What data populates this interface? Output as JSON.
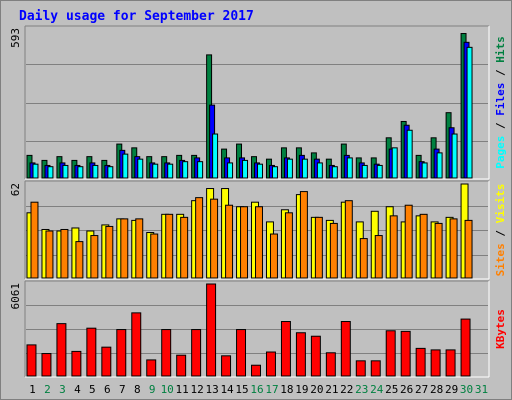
{
  "chart_data": [
    {
      "type": "bar",
      "panel": "top",
      "title": "Daily usage for September 2017",
      "ymax_label": "593",
      "ylim": [
        0,
        593
      ],
      "grid": true,
      "legend_labels": [
        "Pages",
        "Files",
        "Hits"
      ],
      "legend_separator": " / ",
      "categories": [
        "1",
        "2",
        "3",
        "4",
        "5",
        "6",
        "7",
        "8",
        "9",
        "10",
        "11",
        "12",
        "13",
        "14",
        "15",
        "16",
        "17",
        "18",
        "19",
        "20",
        "21",
        "22",
        "23",
        "24",
        "25",
        "26",
        "27",
        "28",
        "29",
        "30",
        "31"
      ],
      "weekend_days": [
        2,
        3,
        9,
        10,
        16,
        17,
        23,
        24,
        30,
        31
      ],
      "series": [
        {
          "name": "Hits",
          "color": "#008040",
          "values": [
            90,
            70,
            85,
            70,
            85,
            70,
            135,
            120,
            85,
            85,
            90,
            90,
            490,
            115,
            135,
            85,
            75,
            120,
            120,
            100,
            75,
            135,
            80,
            80,
            160,
            225,
            90,
            160,
            260,
            575,
            null
          ]
        },
        {
          "name": "Files",
          "color": "#0000ff",
          "values": [
            60,
            50,
            60,
            50,
            60,
            50,
            110,
            85,
            60,
            60,
            70,
            80,
            290,
            80,
            80,
            60,
            50,
            80,
            90,
            75,
            50,
            90,
            60,
            55,
            115,
            210,
            65,
            115,
            200,
            540,
            null
          ]
        },
        {
          "name": "Pages",
          "color": "#00ffff",
          "values": [
            55,
            45,
            50,
            45,
            50,
            45,
            95,
            75,
            55,
            55,
            65,
            65,
            175,
            60,
            70,
            55,
            45,
            75,
            75,
            60,
            45,
            80,
            50,
            50,
            120,
            190,
            60,
            100,
            175,
            520,
            null
          ]
        }
      ]
    },
    {
      "type": "bar",
      "panel": "middle",
      "ymax_label": "62",
      "ylim": [
        0,
        62
      ],
      "grid": true,
      "legend_labels": [
        "Sites",
        "Visits"
      ],
      "legend_separator": " / ",
      "categories": [
        "1",
        "2",
        "3",
        "4",
        "5",
        "6",
        "7",
        "8",
        "9",
        "10",
        "11",
        "12",
        "13",
        "14",
        "15",
        "16",
        "17",
        "18",
        "19",
        "20",
        "21",
        "22",
        "23",
        "24",
        "25",
        "26",
        "27",
        "28",
        "29",
        "30",
        "31"
      ],
      "series": [
        {
          "name": "Visits",
          "color": "#ffff00",
          "values": [
            43,
            32,
            31,
            33,
            31,
            35,
            39,
            38,
            30,
            42,
            42,
            51,
            59,
            59,
            47,
            50,
            37,
            45,
            55,
            40,
            38,
            50,
            37,
            44,
            47,
            37,
            41,
            37,
            40,
            62,
            null
          ]
        },
        {
          "name": "Sites",
          "color": "#ff8000",
          "values": [
            50,
            31,
            32,
            24,
            28,
            34,
            39,
            39,
            29,
            42,
            40,
            53,
            52,
            48,
            47,
            47,
            29,
            43,
            57,
            40,
            36,
            51,
            26,
            28,
            41,
            48,
            42,
            36,
            39,
            38,
            null
          ]
        }
      ]
    },
    {
      "type": "bar",
      "panel": "bottom",
      "ymax_label": "6061",
      "ylim": [
        0,
        6061
      ],
      "grid": true,
      "legend_labels": [
        "KBytes"
      ],
      "categories": [
        "1",
        "2",
        "3",
        "4",
        "5",
        "6",
        "7",
        "8",
        "9",
        "10",
        "11",
        "12",
        "13",
        "14",
        "15",
        "16",
        "17",
        "18",
        "19",
        "20",
        "21",
        "22",
        "23",
        "24",
        "25",
        "26",
        "27",
        "28",
        "29",
        "30",
        "31"
      ],
      "series": [
        {
          "name": "KBytes",
          "color": "#ff0000",
          "values": [
            2050,
            1480,
            3450,
            1620,
            3150,
            1900,
            3060,
            4160,
            1060,
            3060,
            1370,
            3060,
            6061,
            1330,
            3060,
            710,
            1580,
            3590,
            2850,
            2620,
            1530,
            3590,
            1000,
            1000,
            2980,
            2940,
            1820,
            1720,
            1720,
            3750,
            null
          ]
        }
      ]
    }
  ],
  "colors": {
    "background": "#c0c0c0",
    "title": "#0000ff",
    "weekday_label": "#000000",
    "weekend_label": "#008040"
  }
}
